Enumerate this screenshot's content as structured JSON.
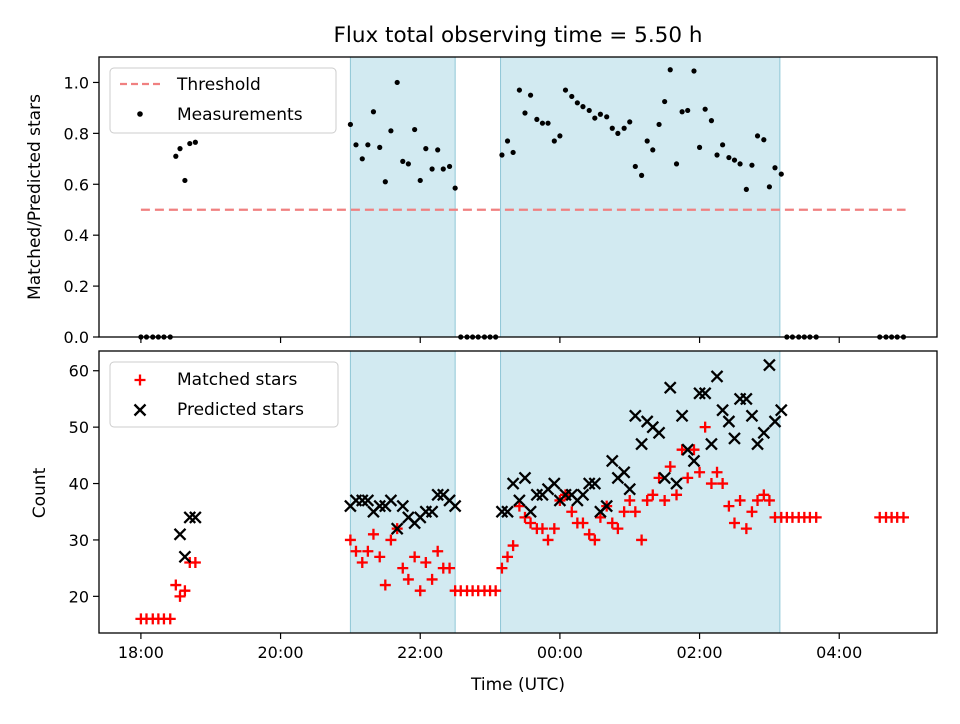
{
  "title": "Flux total observing time = 5.50 h",
  "xlabel": "Time (UTC)",
  "x_tick_labels": [
    "18:00",
    "20:00",
    "22:00",
    "00:00",
    "02:00",
    "04:00"
  ],
  "colors": {
    "threshold": "#f08080",
    "measurement": "#000000",
    "matched": "#ff0000",
    "predicted": "#000000",
    "observing_band": "#add8e6"
  },
  "chart_data": [
    {
      "type": "scatter",
      "panel": "top",
      "ylabel": "Matched/Predicted stars",
      "ylim": [
        0,
        1.1
      ],
      "yticks": [
        "0.0",
        "0.2",
        "0.4",
        "0.6",
        "0.8",
        "1.0"
      ],
      "x_unit": "hours after 18:00 UTC",
      "xlim": [
        -0.6,
        11.4
      ],
      "legend": "upper left",
      "observing_windows": [
        [
          3.0,
          4.5
        ],
        [
          5.15,
          9.15
        ]
      ],
      "threshold": {
        "name": "Threshold",
        "y": 0.5,
        "x_range": [
          0.0,
          10.95
        ],
        "style": "dashed"
      },
      "series": [
        {
          "name": "Measurements",
          "marker": "dot",
          "x": [
            0,
            0.08,
            0.17,
            0.25,
            0.33,
            0.42,
            0.5,
            0.56,
            0.63,
            0.7,
            0.78,
            3.0,
            3.08,
            3.17,
            3.25,
            3.33,
            3.42,
            3.5,
            3.58,
            3.67,
            3.75,
            3.83,
            3.92,
            4.0,
            4.08,
            4.17,
            4.25,
            4.33,
            4.42,
            4.5,
            4.58,
            4.67,
            4.75,
            4.83,
            4.92,
            5.0,
            5.08,
            5.17,
            5.25,
            5.33,
            5.42,
            5.5,
            5.58,
            5.67,
            5.75,
            5.83,
            5.92,
            6.0,
            6.08,
            6.17,
            6.25,
            6.33,
            6.42,
            6.5,
            6.58,
            6.67,
            6.75,
            6.83,
            6.92,
            7.0,
            7.08,
            7.17,
            7.25,
            7.33,
            7.42,
            7.5,
            7.58,
            7.67,
            7.75,
            7.83,
            7.92,
            8.0,
            8.08,
            8.17,
            8.25,
            8.33,
            8.42,
            8.5,
            8.58,
            8.67,
            8.75,
            8.83,
            8.92,
            9.0,
            9.08,
            9.17,
            9.25,
            9.33,
            9.42,
            9.5,
            9.58,
            9.67,
            10.58,
            10.67,
            10.75,
            10.83,
            10.92
          ],
          "y": [
            0,
            0,
            0,
            0,
            0,
            0,
            0.71,
            0.74,
            0.615,
            0.76,
            0.765,
            0.835,
            0.755,
            0.7,
            0.755,
            0.885,
            0.745,
            0.61,
            0.81,
            1.0,
            0.69,
            0.68,
            0.815,
            0.615,
            0.74,
            0.66,
            0.735,
            0.66,
            0.67,
            0.585,
            0,
            0,
            0,
            0,
            0,
            0,
            0,
            0.715,
            0.77,
            0.725,
            0.97,
            0.88,
            0.95,
            0.855,
            0.84,
            0.84,
            0.77,
            0.79,
            0.97,
            0.945,
            0.92,
            0.905,
            0.89,
            0.86,
            0.875,
            0.865,
            0.82,
            0.8,
            0.82,
            0.845,
            0.67,
            0.635,
            0.77,
            0.735,
            0.835,
            0.925,
            1.05,
            0.68,
            0.885,
            0.89,
            1.045,
            0.745,
            0.895,
            0.85,
            0.715,
            0.755,
            0.705,
            0.695,
            0.68,
            0.58,
            0.675,
            0.79,
            0.775,
            0.59,
            0.665,
            0.64,
            0,
            0,
            0,
            0,
            0,
            0,
            0,
            0,
            0,
            0,
            0
          ]
        }
      ]
    },
    {
      "type": "scatter",
      "panel": "bottom",
      "ylabel": "Count",
      "ylim": [
        13.5,
        63.5
      ],
      "yticks": [
        "20",
        "30",
        "40",
        "50",
        "60"
      ],
      "x_unit": "hours after 18:00 UTC",
      "xlim": [
        -0.6,
        11.4
      ],
      "legend": "upper left",
      "observing_windows": [
        [
          3.0,
          4.5
        ],
        [
          5.15,
          9.15
        ]
      ],
      "series": [
        {
          "name": "Matched stars",
          "marker": "plus",
          "x": [
            0,
            0.08,
            0.17,
            0.25,
            0.33,
            0.42,
            0.5,
            0.56,
            0.63,
            0.7,
            0.78,
            3.0,
            3.08,
            3.17,
            3.25,
            3.33,
            3.42,
            3.5,
            3.58,
            3.67,
            3.75,
            3.83,
            3.92,
            4.0,
            4.08,
            4.17,
            4.25,
            4.33,
            4.42,
            4.5,
            4.58,
            4.67,
            4.75,
            4.83,
            4.92,
            5.0,
            5.08,
            5.17,
            5.25,
            5.33,
            5.42,
            5.5,
            5.58,
            5.67,
            5.75,
            5.83,
            5.92,
            6.0,
            6.08,
            6.17,
            6.25,
            6.33,
            6.42,
            6.5,
            6.58,
            6.67,
            6.75,
            6.83,
            6.92,
            7.0,
            7.08,
            7.17,
            7.25,
            7.33,
            7.42,
            7.5,
            7.58,
            7.67,
            7.75,
            7.83,
            7.92,
            8.0,
            8.08,
            8.17,
            8.25,
            8.33,
            8.42,
            8.5,
            8.58,
            8.67,
            8.75,
            8.83,
            8.92,
            9.0,
            9.08,
            9.17,
            9.25,
            9.33,
            9.42,
            9.5,
            9.58,
            9.67,
            10.58,
            10.67,
            10.75,
            10.83,
            10.92
          ],
          "y": [
            16,
            16,
            16,
            16,
            16,
            16,
            22,
            20,
            21,
            26,
            26,
            30,
            28,
            26,
            28,
            31,
            27,
            22,
            30,
            32,
            25,
            23,
            27,
            21,
            26,
            23,
            28,
            25,
            25,
            21,
            21,
            21,
            21,
            21,
            21,
            21,
            21,
            25,
            27,
            29,
            36,
            34,
            33,
            32,
            32,
            30,
            32,
            37,
            38,
            35,
            33,
            33,
            31,
            30,
            34,
            36,
            33,
            32,
            35,
            37,
            35,
            30,
            37,
            38,
            41,
            37,
            43,
            38,
            46,
            41,
            46,
            42,
            50,
            40,
            42,
            40,
            36,
            33,
            37,
            32,
            35,
            37,
            38,
            37,
            34,
            34,
            34,
            34,
            34,
            34,
            34,
            34,
            34,
            34,
            34,
            34,
            34
          ]
        },
        {
          "name": "Predicted stars",
          "marker": "x",
          "x": [
            0.56,
            0.63,
            0.7,
            0.78,
            3.0,
            3.08,
            3.17,
            3.25,
            3.33,
            3.42,
            3.5,
            3.58,
            3.67,
            3.75,
            3.83,
            3.92,
            4.0,
            4.08,
            4.17,
            4.25,
            4.33,
            4.42,
            4.5,
            5.17,
            5.25,
            5.33,
            5.42,
            5.5,
            5.58,
            5.67,
            5.75,
            5.83,
            5.92,
            6.0,
            6.08,
            6.17,
            6.25,
            6.33,
            6.42,
            6.5,
            6.58,
            6.67,
            6.75,
            6.83,
            6.92,
            7.0,
            7.08,
            7.17,
            7.25,
            7.33,
            7.42,
            7.5,
            7.58,
            7.67,
            7.75,
            7.83,
            7.92,
            8.0,
            8.08,
            8.17,
            8.25,
            8.33,
            8.42,
            8.5,
            8.58,
            8.67,
            8.75,
            8.83,
            8.92,
            9.0,
            9.08,
            9.17
          ],
          "y": [
            31,
            27,
            34,
            34,
            36,
            37,
            37,
            37,
            35,
            36,
            36,
            37,
            32,
            36,
            34,
            33,
            34,
            35,
            35,
            38,
            38,
            37,
            36,
            35,
            35,
            40,
            37,
            41,
            35,
            38,
            38,
            39,
            40,
            37,
            38,
            38,
            37,
            38,
            40,
            40,
            35,
            36,
            44,
            41,
            42,
            39,
            52,
            47,
            51,
            50,
            49,
            41,
            57,
            40,
            52,
            46,
            44,
            56,
            56,
            47,
            59,
            53,
            51,
            48,
            55,
            55,
            52,
            47,
            49,
            61,
            51,
            53
          ]
        }
      ]
    }
  ]
}
